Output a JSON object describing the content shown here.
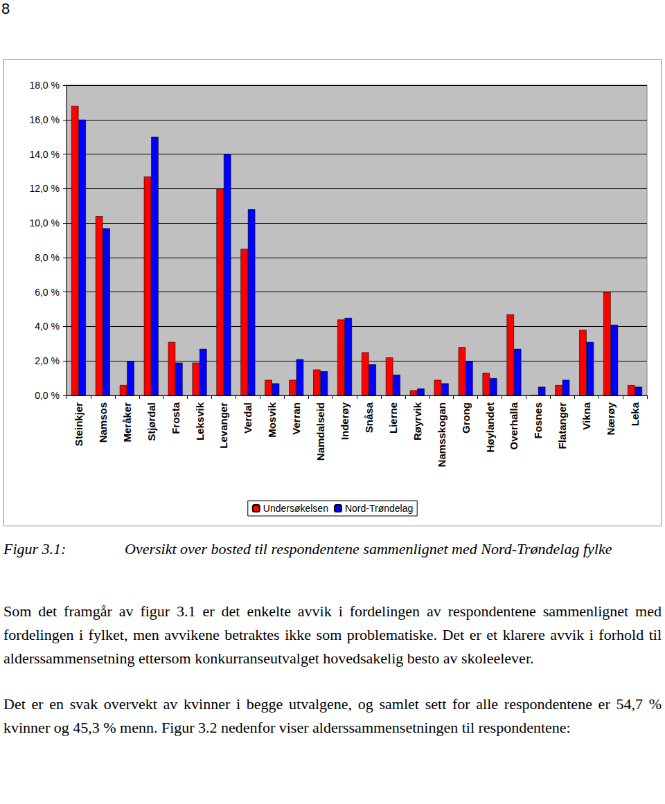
{
  "page_number": "8",
  "chart_data": {
    "type": "bar",
    "categories": [
      "Steinkjer",
      "Namsos",
      "Meråker",
      "Stjørdal",
      "Frosta",
      "Leksvik",
      "Levanger",
      "Verdal",
      "Mosvik",
      "Verran",
      "Namdalseid",
      "Inderøy",
      "Snåsa",
      "Lierne",
      "Røyrvik",
      "Namsskogan",
      "Grong",
      "Høylandet",
      "Overhalla",
      "Fosnes",
      "Flatanger",
      "Vikna",
      "Nærøy",
      "Leka"
    ],
    "series": [
      {
        "name": "Undersøkelsen",
        "color": "#ff0000",
        "values": [
          16.8,
          10.4,
          0.6,
          12.7,
          3.1,
          1.9,
          12.0,
          8.5,
          0.9,
          0.9,
          1.5,
          4.4,
          2.5,
          2.2,
          0.3,
          0.9,
          2.8,
          1.3,
          4.7,
          0,
          0.6,
          3.8,
          6.0,
          0.6
        ]
      },
      {
        "name": "Nord-Trøndelag",
        "color": "#0000ff",
        "values": [
          16.0,
          9.7,
          2.0,
          15.0,
          1.9,
          2.7,
          14.0,
          10.8,
          0.7,
          2.1,
          1.4,
          4.5,
          1.8,
          1.2,
          0.4,
          0.7,
          2.0,
          1.0,
          2.7,
          0.5,
          0.9,
          3.1,
          4.1,
          0.5
        ]
      }
    ],
    "ylim": [
      0,
      18
    ],
    "yticks": [
      {
        "value": 0,
        "label": "0,0 %"
      },
      {
        "value": 2,
        "label": "2,0 %"
      },
      {
        "value": 4,
        "label": "4,0 %"
      },
      {
        "value": 6,
        "label": "6,0 %"
      },
      {
        "value": 8,
        "label": "8,0 %"
      },
      {
        "value": 10,
        "label": "10,0 %"
      },
      {
        "value": 12,
        "label": "12,0 %"
      },
      {
        "value": 14,
        "label": "14,0 %"
      },
      {
        "value": 16,
        "label": "16,0 %"
      },
      {
        "value": 18,
        "label": "18,0 %"
      }
    ],
    "grid": true,
    "legend": "bottom"
  },
  "caption": {
    "label": "Figur 3.1:",
    "text": "Oversikt over bosted til respondentene sammenlignet med Nord-Trøndelag fylke"
  },
  "paragraphs": [
    "Som det framgår av figur 3.1 er det enkelte avvik i fordelingen av respondentene sammenlignet med fordelingen i fylket, men avvikene betraktes ikke som problematiske. Det er et klarere avvik i forhold til alderssammensetning ettersom konkurranseutvalget hovedsakelig besto av skoleelever.",
    "Det er en svak overvekt av kvinner i begge utvalgene, og samlet sett for alle respondentene er 54,7 % kvinner og 45,3 % menn. Figur 3.2 nedenfor viser alderssammensetningen til respondentene:"
  ]
}
